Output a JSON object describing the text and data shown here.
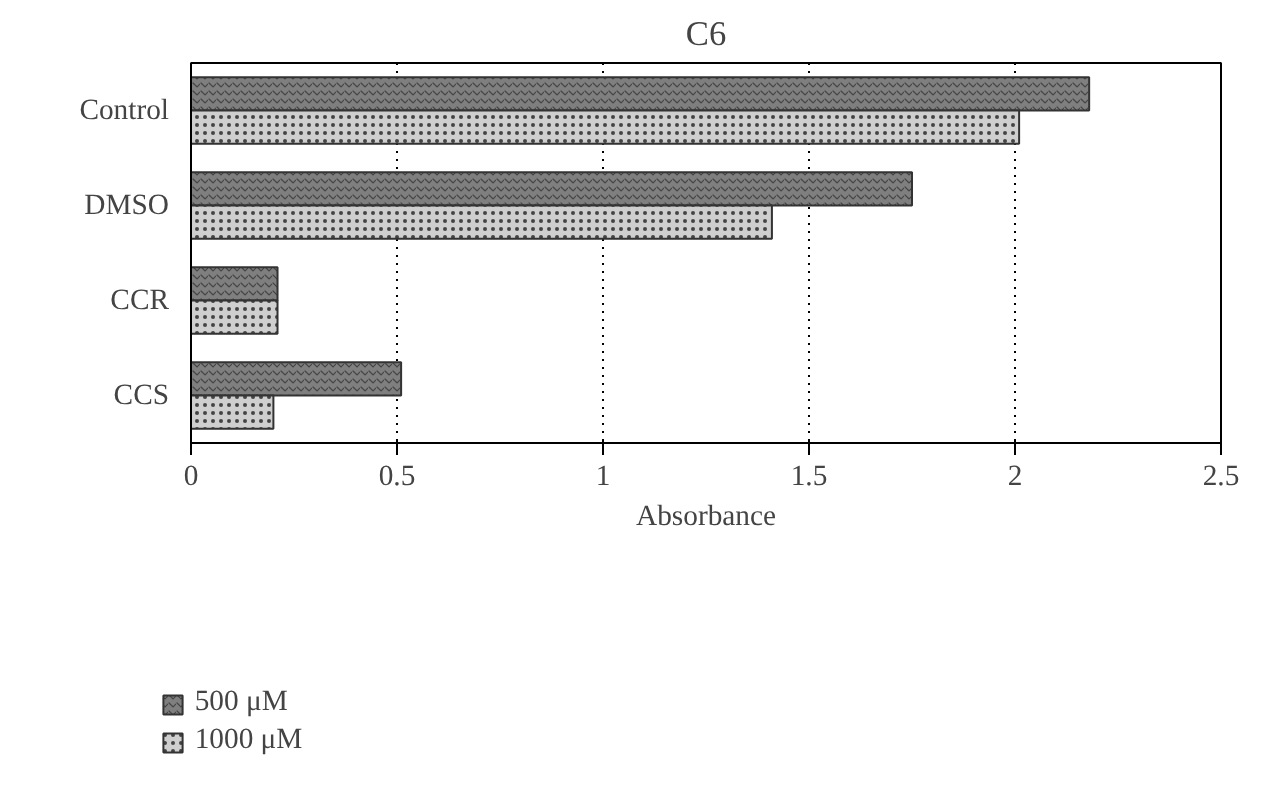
{
  "chart_data": {
    "type": "bar",
    "orientation": "horizontal",
    "title": "C6",
    "xlabel": "Absorbance",
    "categories": [
      "Control",
      "DMSO",
      "CCR",
      "CCS"
    ],
    "series": [
      {
        "name": "500 μM",
        "color": "#7f7f7f",
        "values": [
          2.18,
          1.75,
          0.21,
          0.51
        ]
      },
      {
        "name": "1000 μM",
        "color": "#cfcfcf",
        "values": [
          2.01,
          1.41,
          0.21,
          0.2
        ]
      }
    ],
    "xlim": [
      0,
      2.5
    ],
    "xticks": [
      0,
      0.5,
      1,
      1.5,
      2,
      2.5
    ],
    "grid": "x",
    "legend": "bottom left"
  }
}
